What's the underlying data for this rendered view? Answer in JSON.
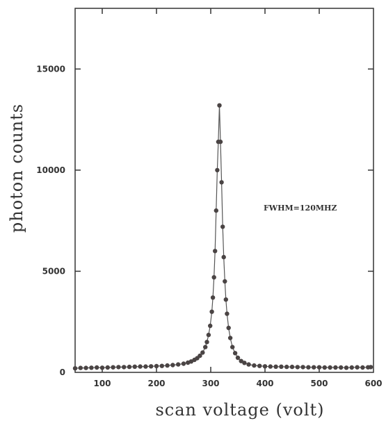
{
  "chart_data": {
    "type": "scatter",
    "title": "",
    "xlabel": "scan voltage (volt)",
    "ylabel": "photon counts",
    "xlim": [
      50,
      600
    ],
    "ylim": [
      0,
      18000
    ],
    "xticks": [
      100,
      200,
      300,
      400,
      500,
      600
    ],
    "yticks": [
      0,
      5000,
      10000,
      15000
    ],
    "grid": false,
    "legend": "none",
    "annotations": [
      {
        "text": "FWHM=120MHZ",
        "x": 465,
        "y": 8000
      }
    ],
    "series": [
      {
        "marker": "circle",
        "line": true,
        "color": "#4a4444",
        "x": [
          50,
          60,
          70,
          80,
          90,
          100,
          110,
          120,
          130,
          140,
          150,
          160,
          170,
          180,
          190,
          200,
          210,
          220,
          230,
          240,
          250,
          258,
          264,
          270,
          275,
          280,
          285,
          290,
          293,
          296,
          299,
          302,
          304,
          306,
          308,
          310,
          312,
          314,
          316,
          318,
          320,
          322,
          324,
          326,
          328,
          330,
          333,
          336,
          340,
          345,
          350,
          356,
          362,
          370,
          380,
          390,
          400,
          410,
          420,
          430,
          440,
          450,
          460,
          470,
          480,
          490,
          500,
          510,
          520,
          530,
          540,
          550,
          560,
          570,
          580,
          590,
          595
        ],
        "y": [
          200,
          220,
          220,
          230,
          240,
          230,
          240,
          250,
          260,
          260,
          270,
          280,
          290,
          290,
          300,
          310,
          320,
          340,
          360,
          390,
          430,
          480,
          540,
          620,
          700,
          820,
          980,
          1250,
          1500,
          1850,
          2300,
          3000,
          3700,
          4700,
          6000,
          8000,
          10000,
          11400,
          13200,
          11400,
          9400,
          7200,
          5700,
          4500,
          3600,
          2900,
          2200,
          1700,
          1250,
          950,
          720,
          560,
          470,
          390,
          340,
          320,
          300,
          290,
          280,
          280,
          270,
          270,
          260,
          260,
          250,
          250,
          250,
          240,
          240,
          240,
          240,
          230,
          240,
          250,
          240,
          250,
          260
        ]
      }
    ]
  }
}
